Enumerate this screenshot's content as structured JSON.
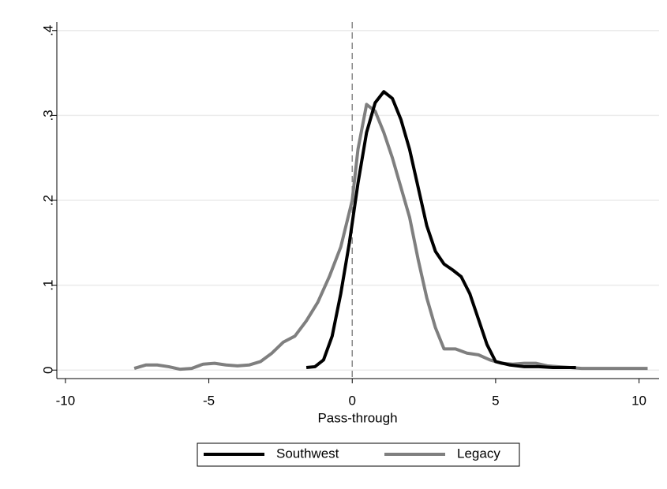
{
  "chart_data": {
    "type": "line",
    "xlabel": "Pass-through",
    "xlim": [
      -10.3,
      10.7
    ],
    "xticks": [
      -10,
      -5,
      0,
      5,
      10
    ],
    "ylim": [
      -0.01,
      0.41
    ],
    "yticks": [
      {
        "value": 0,
        "label": "0"
      },
      {
        "value": 0.1,
        "label": ".1"
      },
      {
        "value": 0.2,
        "label": ".2"
      },
      {
        "value": 0.3,
        "label": ".3"
      },
      {
        "value": 0.4,
        "label": ".4"
      }
    ],
    "grid": true,
    "xline": 0,
    "legend": "bottom",
    "series": [
      {
        "name": "Southwest",
        "color": "#000000",
        "x": [
          -1.6,
          -1.3,
          -1.0,
          -0.7,
          -0.4,
          -0.1,
          0.2,
          0.5,
          0.8,
          1.1,
          1.4,
          1.7,
          2.0,
          2.3,
          2.6,
          2.9,
          3.2,
          3.5,
          3.8,
          4.1,
          4.4,
          4.7,
          5.0,
          5.5,
          6.0,
          6.5,
          7.0,
          7.8
        ],
        "values": [
          0.003,
          0.004,
          0.012,
          0.04,
          0.09,
          0.15,
          0.22,
          0.28,
          0.315,
          0.328,
          0.32,
          0.295,
          0.26,
          0.215,
          0.17,
          0.14,
          0.125,
          0.118,
          0.11,
          0.09,
          0.06,
          0.03,
          0.01,
          0.006,
          0.004,
          0.004,
          0.003,
          0.003
        ]
      },
      {
        "name": "Legacy",
        "color": "#7f7f7f",
        "x": [
          -7.6,
          -7.2,
          -6.8,
          -6.4,
          -6.0,
          -5.6,
          -5.2,
          -4.8,
          -4.4,
          -4.0,
          -3.6,
          -3.2,
          -2.8,
          -2.4,
          -2.0,
          -1.6,
          -1.2,
          -0.8,
          -0.4,
          0.0,
          0.2,
          0.5,
          0.8,
          1.1,
          1.4,
          1.7,
          2.0,
          2.3,
          2.6,
          2.9,
          3.2,
          3.6,
          4.0,
          4.4,
          4.8,
          5.2,
          5.6,
          6.0,
          6.4,
          6.8,
          7.2,
          7.6,
          8.0,
          8.5,
          9.0,
          9.5,
          10.0,
          10.3
        ],
        "values": [
          0.002,
          0.006,
          0.006,
          0.004,
          0.001,
          0.002,
          0.007,
          0.008,
          0.006,
          0.005,
          0.006,
          0.01,
          0.02,
          0.033,
          0.04,
          0.058,
          0.08,
          0.11,
          0.145,
          0.2,
          0.26,
          0.313,
          0.305,
          0.28,
          0.25,
          0.215,
          0.18,
          0.13,
          0.085,
          0.05,
          0.025,
          0.025,
          0.02,
          0.018,
          0.012,
          0.008,
          0.007,
          0.008,
          0.008,
          0.005,
          0.004,
          0.003,
          0.002,
          0.002,
          0.002,
          0.002,
          0.002,
          0.002
        ]
      }
    ]
  }
}
